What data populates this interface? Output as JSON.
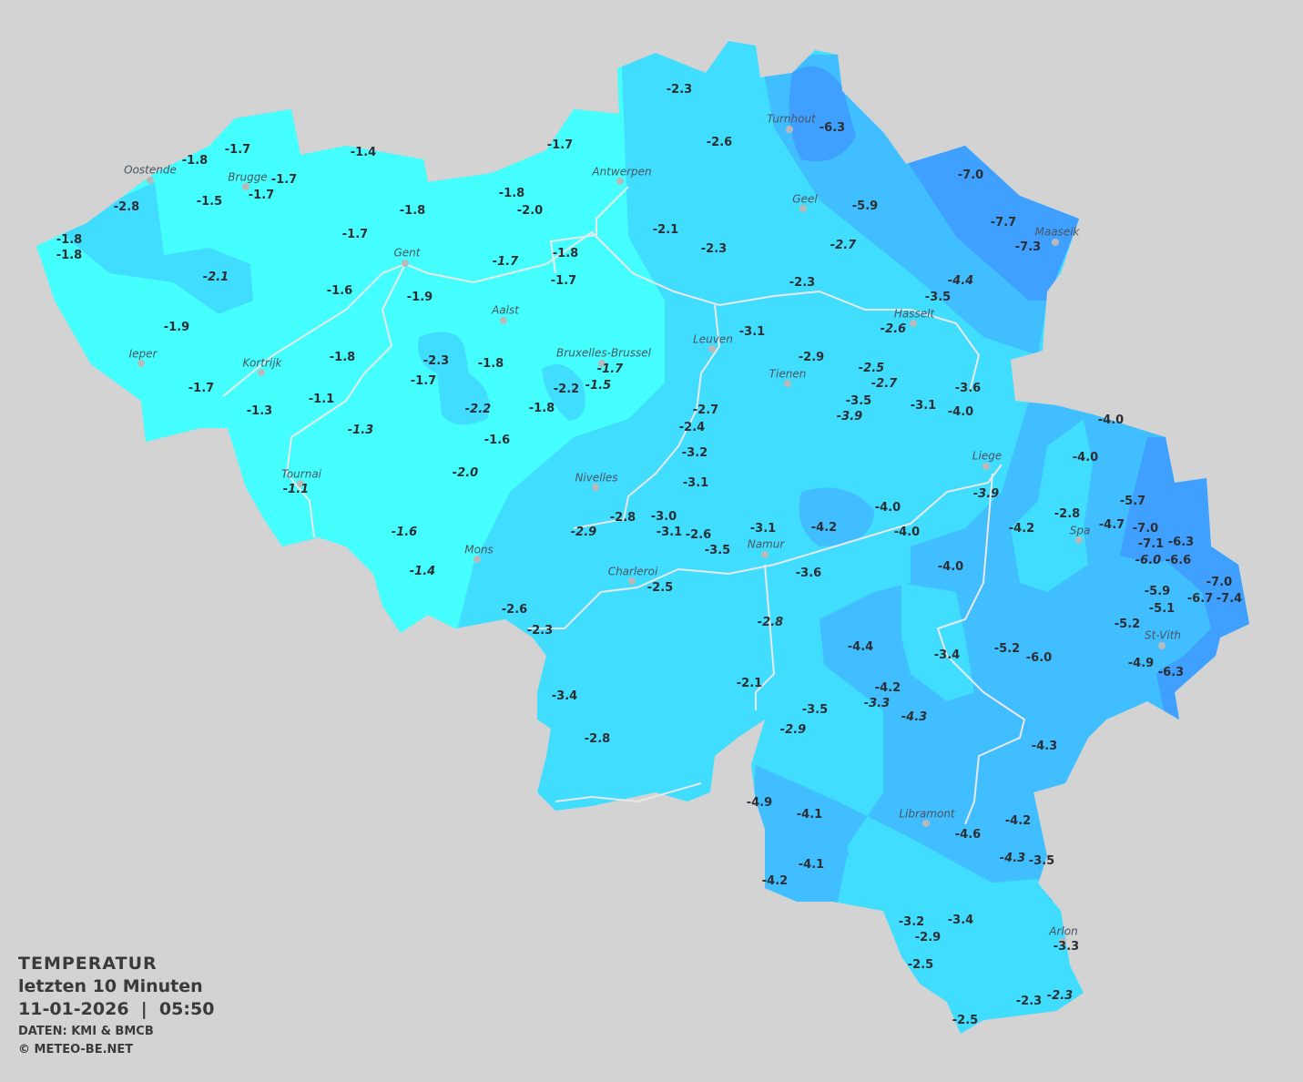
{
  "legend": {
    "title": "TEMPERATUR",
    "subtitle": "letzten 10 Minuten",
    "datetime": "11-01-2026  |  05:50",
    "source": "DATEN: KMI & BMCB",
    "copyright": "© METEO-BE.NET"
  },
  "colors": {
    "background": "#d3d3d3",
    "band_warmest": "#45ffff",
    "band_mid": "#41ddff",
    "band_cool": "#40beff",
    "band_coldest": "#3fa0ff",
    "borders": "#e6e6e6"
  },
  "cities": [
    "Oostende",
    "Brugge",
    "Antwerpen",
    "Turnhout",
    "Geel",
    "Maaseik",
    "Gent",
    "Hasselt",
    "Aalst",
    "Leuven",
    "Ieper",
    "Kortrijk",
    "Bruxelles-Brussel",
    "Tienen",
    "Liege",
    "Tournai",
    "Nivelles",
    "Spa",
    "Namur",
    "Mons",
    "Charleroi",
    "St-Vith",
    "Libramont",
    "Arlon"
  ],
  "temperatures": [
    "-1.7",
    "-1.8",
    "-1.4",
    "-1.7",
    "-2.3",
    "-2.6",
    "-6.3",
    "-1.7",
    "-1.7",
    "-1.5",
    "-2.8",
    "-1.8",
    "-2.0",
    "-1.8",
    "-1.7",
    "-1.8",
    "-1.8",
    "-2.1",
    "-1.6",
    "-1.9",
    "-1.7",
    "-1.8",
    "-1.7",
    "-1.9",
    "-1.8",
    "-2.3",
    "-1.8",
    "-1.7",
    "-1.7",
    "-1.5",
    "-2.2",
    "-1.7",
    "-1.3",
    "-1.1",
    "-2.2",
    "-1.8",
    "-1.3",
    "-1.6",
    "-2.0",
    "-1.1",
    "-1.6",
    "-1.4",
    "-2.1",
    "-2.3",
    "-5.9",
    "-2.7",
    "-7.0",
    "-7.7",
    "-7.3",
    "-4.4",
    "-2.3",
    "-3.5",
    "-2.6",
    "-3.1",
    "-2.9",
    "-2.5",
    "-2.7",
    "-3.6",
    "-3.5",
    "-3.9",
    "-3.1",
    "-4.0",
    "-2.7",
    "-2.4",
    "-3.2",
    "-3.1",
    "-3.9",
    "-4.0",
    "-4.2",
    "-4.0",
    "-4.0",
    "-4.0",
    "-5.7",
    "-2.8",
    "-4.7",
    "-4.2",
    "-7.0",
    "-7.1",
    "-6.3",
    "-6.0",
    "-6.6",
    "-7.0",
    "-6.7",
    "-7.4",
    "-5.9",
    "-5.1",
    "-5.2",
    "-4.9",
    "-6.3",
    "-2.8",
    "-3.0",
    "-2.9",
    "-3.1",
    "-2.6",
    "-3.5",
    "-3.1",
    "-4.0",
    "-3.6",
    "-2.5",
    "-2.6",
    "-2.3",
    "-2.8",
    "-4.4",
    "-3.4",
    "-5.2",
    "-6.0",
    "-2.1",
    "-4.2",
    "-3.3",
    "-3.4",
    "-3.5",
    "-4.3",
    "-2.9",
    "-2.8",
    "-4.3",
    "-4.9",
    "-4.1",
    "-4.6",
    "-4.2",
    "-4.3",
    "-3.5",
    "-4.1",
    "-4.2",
    "-3.2",
    "-2.9",
    "-3.4",
    "-3.3",
    "-2.5",
    "-2.3",
    "-2.3",
    "-2.5"
  ]
}
